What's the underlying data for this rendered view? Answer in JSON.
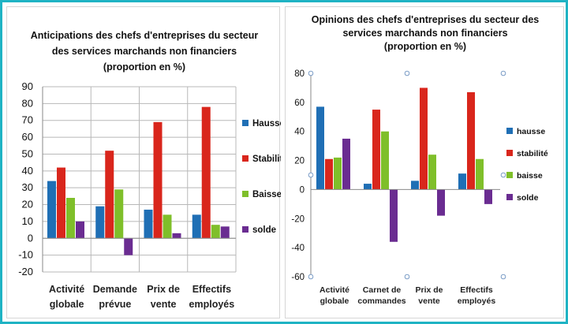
{
  "colors": {
    "hausse": "#1f6fb5",
    "stabilite": "#d9261c",
    "baisse": "#7fbf2a",
    "solde": "#6a2c91",
    "frame": "#1fb3c4"
  },
  "chart_data": [
    {
      "type": "bar",
      "title_lines": [
        "Anticipations des chefs d'entreprises du secteur",
        "des services marchands non financiers",
        "(proportion en %)"
      ],
      "categories": [
        [
          "Activité",
          "globale"
        ],
        [
          "Demande",
          "prévue"
        ],
        [
          "Prix de",
          "vente"
        ],
        [
          "Effectifs",
          "employés"
        ]
      ],
      "series": [
        {
          "name": "Hausse",
          "key": "hausse",
          "values": [
            34,
            19,
            17,
            14
          ]
        },
        {
          "name": "Stabilité",
          "key": "stabilite",
          "values": [
            42,
            52,
            69,
            78
          ]
        },
        {
          "name": "Baisse",
          "key": "baisse",
          "values": [
            24,
            29,
            14,
            8
          ]
        },
        {
          "name": "solde",
          "key": "solde",
          "values": [
            10,
            -10,
            3,
            7
          ]
        }
      ],
      "ylim": [
        -20,
        90
      ],
      "yticks": [
        -20,
        -10,
        0,
        10,
        20,
        30,
        40,
        50,
        60,
        70,
        80,
        90
      ],
      "grid": true,
      "legend": "right"
    },
    {
      "type": "bar",
      "title_lines": [
        "Opinions des chefs d'entreprises du secteur des",
        "services marchands non financiers",
        "(proportion en %)"
      ],
      "categories": [
        [
          "Activité",
          "globale"
        ],
        [
          "Carnet de",
          "commandes"
        ],
        [
          "Prix de",
          "vente"
        ],
        [
          "Effectifs",
          "employés"
        ]
      ],
      "series": [
        {
          "name": "hausse",
          "key": "hausse",
          "values": [
            57,
            4,
            6,
            11
          ]
        },
        {
          "name": "stabilité",
          "key": "stabilite",
          "values": [
            21,
            55,
            70,
            67
          ]
        },
        {
          "name": "baisse",
          "key": "baisse",
          "values": [
            22,
            40,
            24,
            21
          ]
        },
        {
          "name": "solde",
          "key": "solde",
          "values": [
            35,
            -36,
            -18,
            -10
          ]
        }
      ],
      "ylim": [
        -60,
        80
      ],
      "yticks": [
        -60,
        -40,
        -20,
        0,
        20,
        40,
        60,
        80
      ],
      "grid": false,
      "legend": "right"
    }
  ]
}
